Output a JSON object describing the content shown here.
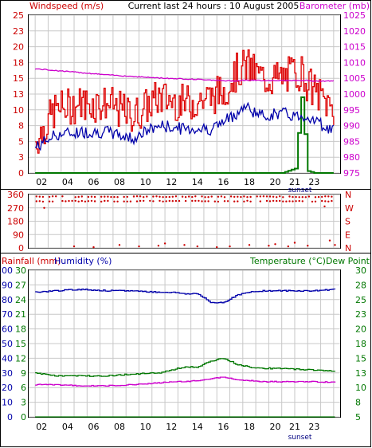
{
  "colors": {
    "wind": "#cc0000",
    "gust": "#dd0000",
    "wind_avg": "#0000aa",
    "baro": "#cc00cc",
    "rain": "#007700",
    "direction": "#cc0000",
    "humidity": "#0000aa",
    "temperature": "#007700",
    "dewpoint": "#cc00cc",
    "grid": "#c8c8c8",
    "frame": "#000000"
  },
  "hour_labels": [
    "02",
    "04",
    "06",
    "08",
    "10",
    "12",
    "14",
    "16",
    "18",
    "20",
    "21",
    "23"
  ],
  "sunset_label": "sunset",
  "chart_data": [
    {
      "type": "line",
      "title": "Current last 24 hours : 10 August 2005",
      "xlabel": "",
      "left_axis": {
        "label": "Windspeed (m/s)",
        "ticks": [
          "0",
          "3",
          "5",
          "8",
          "10",
          "13",
          "15",
          "18",
          "20",
          "23",
          "25"
        ],
        "ylim": [
          0,
          25
        ]
      },
      "right_axis": {
        "label": "Barometer (mb)",
        "ticks": [
          "975",
          "980",
          "985",
          "990",
          "995",
          "1000",
          "1005",
          "1010",
          "1015",
          "1020",
          "1025"
        ],
        "ylim": [
          975,
          1025
        ]
      },
      "x": [
        0.5,
        2,
        4,
        6,
        8,
        10,
        12,
        14,
        15,
        16,
        16.7,
        18,
        19.5,
        20.5,
        21,
        21.5,
        22,
        23,
        23.5
      ],
      "series": [
        {
          "role": "gust",
          "values": [
            5,
            10,
            11,
            11,
            9,
            12,
            11,
            12,
            13,
            16,
            17,
            15,
            15,
            16,
            16,
            14,
            13,
            11,
            10
          ]
        },
        {
          "role": "average",
          "values": [
            4,
            6,
            6.5,
            6.5,
            5.5,
            7.5,
            7,
            7,
            8,
            9.5,
            10.5,
            9,
            9.5,
            9,
            9,
            9,
            8.5,
            7,
            7
          ]
        },
        {
          "role": "barometer",
          "values": [
            1008,
            1007.5,
            1006.8,
            1006.1,
            1005.6,
            1005.1,
            1004.8,
            1004.5,
            1004.2,
            1004.2,
            1004.4,
            1004.3,
            1004.3,
            1004.3,
            1004.3,
            1004.3,
            1004.1,
            1004.1,
            1004.1
          ]
        },
        {
          "role": "rainfall",
          "values": [
            0,
            0,
            0,
            0,
            0,
            0,
            0,
            0,
            0,
            0,
            0,
            0,
            0,
            0.7,
            12,
            0.3,
            0,
            0,
            0
          ]
        }
      ]
    },
    {
      "type": "scatter",
      "xlabel": "",
      "left_axis": {
        "label": "",
        "ticks": [
          "0",
          "90",
          "180",
          "270",
          "360"
        ],
        "ylim": [
          0,
          360
        ]
      },
      "right_axis": {
        "label": "",
        "ticks": [
          "N",
          "E",
          "S",
          "W",
          "N"
        ]
      },
      "bands": [
        345,
        315
      ],
      "scattered": [
        {
          "x": 1.2,
          "y": 270
        },
        {
          "x": 3.5,
          "y": 10
        },
        {
          "x": 5,
          "y": 5
        },
        {
          "x": 7,
          "y": 20
        },
        {
          "x": 8.5,
          "y": 10
        },
        {
          "x": 10,
          "y": 15
        },
        {
          "x": 10.5,
          "y": 30
        },
        {
          "x": 12,
          "y": 20
        },
        {
          "x": 13,
          "y": 10
        },
        {
          "x": 14.5,
          "y": 5
        },
        {
          "x": 15.5,
          "y": 10
        },
        {
          "x": 17,
          "y": 20
        },
        {
          "x": 18.5,
          "y": 15
        },
        {
          "x": 19,
          "y": 25
        },
        {
          "x": 20,
          "y": 10
        },
        {
          "x": 20.5,
          "y": 35
        },
        {
          "x": 21.5,
          "y": 15
        },
        {
          "x": 22.8,
          "y": 280
        },
        {
          "x": 23.2,
          "y": 50
        },
        {
          "x": 23.6,
          "y": 20
        }
      ]
    },
    {
      "type": "line",
      "xlabel": "",
      "left_axes": [
        {
          "label": "Rainfall (mm)",
          "ticks": [
            "0",
            "3",
            "6",
            "9",
            "12",
            "15",
            "18",
            "21",
            "24",
            "27",
            "30"
          ],
          "ylim": [
            0,
            30
          ]
        },
        {
          "label": "Humidity (%)",
          "ticks": [
            "0",
            "10",
            "20",
            "30",
            "40",
            "50",
            "60",
            "70",
            "80",
            "90",
            "100"
          ],
          "ylim": [
            0,
            100
          ]
        }
      ],
      "right_axis": {
        "label": "Temperature (°C)Dew Point",
        "ticks": [
          "5",
          "8",
          "10",
          "13",
          "15",
          "18",
          "20",
          "23",
          "25",
          "28",
          "30"
        ],
        "ylim": [
          5,
          30
        ]
      },
      "x": [
        0.5,
        2,
        4,
        6,
        8,
        10,
        11,
        12,
        13,
        14,
        15,
        16,
        17,
        18,
        20,
        22,
        23.5
      ],
      "series": [
        {
          "role": "humidity",
          "values": [
            85,
            86,
            87,
            86,
            86,
            85,
            85,
            84,
            84,
            78,
            78,
            83,
            85,
            86,
            86,
            86,
            87
          ]
        },
        {
          "role": "temperature",
          "values": [
            12.5,
            12,
            12,
            12,
            12.3,
            12.5,
            13,
            13.5,
            13.5,
            14.5,
            15,
            14,
            13.5,
            13.3,
            13.2,
            13,
            12.8
          ]
        },
        {
          "role": "dewpoint",
          "values": [
            10.5,
            10.5,
            10.3,
            10.3,
            10.5,
            10.8,
            11,
            11,
            11.2,
            11.5,
            11.8,
            11.3,
            11.2,
            11,
            11,
            11,
            10.9
          ]
        },
        {
          "role": "rainfall",
          "values": [
            0,
            0,
            0,
            0,
            0,
            0,
            0,
            0,
            0,
            0,
            0,
            0,
            0,
            0,
            0,
            0,
            0
          ]
        }
      ]
    }
  ]
}
